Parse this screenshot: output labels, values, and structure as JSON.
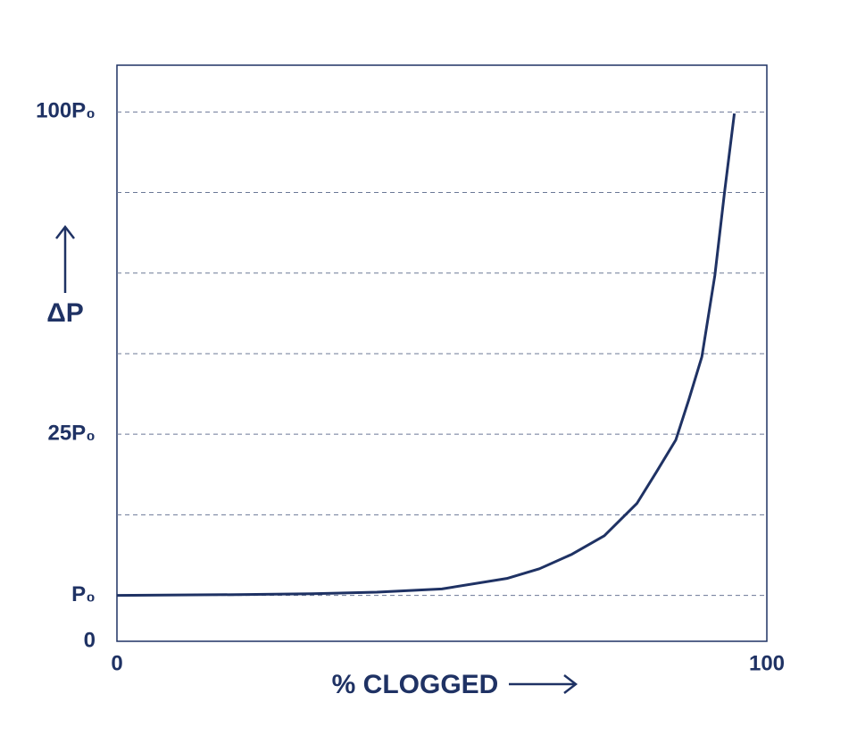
{
  "chart_data": {
    "type": "line",
    "x_label": "% CLOGGED",
    "y_label": "ΔP",
    "x": [
      0,
      20,
      30,
      40,
      50,
      60,
      65,
      70,
      75,
      80,
      83,
      86,
      88,
      90,
      92,
      93.5,
      95
    ],
    "series": [
      {
        "color": "#1f3264",
        "values": [
          0.57,
          0.58,
          0.59,
          0.61,
          0.65,
          0.78,
          0.9,
          1.08,
          1.31,
          1.71,
          2.1,
          2.5,
          3.0,
          3.53,
          4.54,
          5.58,
          6.55
        ]
      }
    ],
    "xlim": [
      0,
      100
    ],
    "xticks": [
      0,
      100
    ],
    "ylim": [
      0,
      7.15
    ],
    "yticks": [
      0,
      {
        "value": 0.57,
        "label": "P₀"
      },
      {
        "value": 1.57,
        "label": null
      },
      {
        "value": 2.57,
        "label": "25P₀"
      },
      {
        "value": 3.57,
        "label": null
      },
      {
        "value": 4.57,
        "label": null
      },
      {
        "value": 5.57,
        "label": null
      },
      {
        "value": 6.57,
        "label": "100P₀"
      }
    ],
    "grid": true
  }
}
